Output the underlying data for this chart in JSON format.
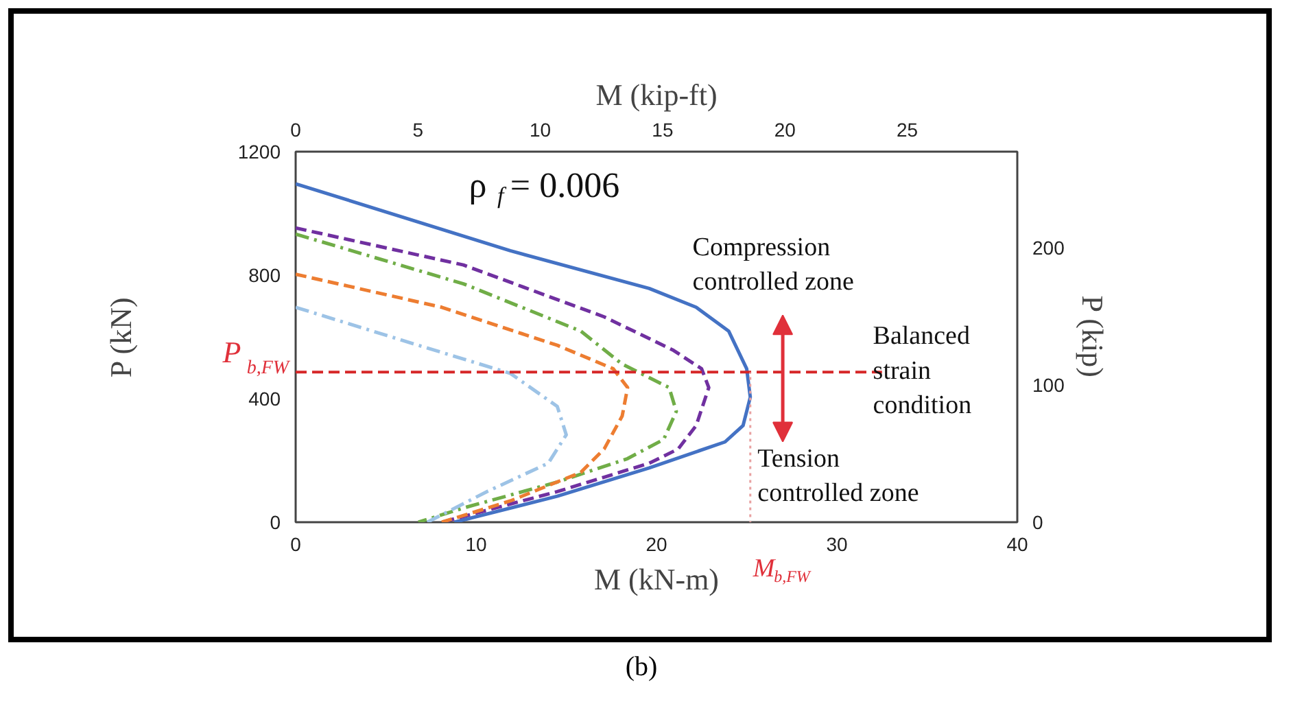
{
  "chart_data": {
    "type": "line",
    "xlabel": "M (kN-m)",
    "ylabel": "P (kN)",
    "x2label": "M (kip-ft)",
    "y2label": "P (kip)",
    "xlim": [
      0,
      40
    ],
    "xticks": [
      0,
      10,
      20,
      30,
      40
    ],
    "x2lim": [
      0,
      29.5
    ],
    "x2ticks": [
      0,
      5,
      10,
      15,
      20,
      25
    ],
    "ylim": [
      0,
      1200
    ],
    "yticks": [
      0,
      400,
      800,
      1200
    ],
    "y2lim": [
      0,
      269.8
    ],
    "y2ticks": [
      0,
      100,
      200
    ],
    "grid": false,
    "marker": "none",
    "series": [
      {
        "color": "#4472c4",
        "line_style": "solid",
        "x": [
          0,
          11.9,
          19.6,
          22.2,
          24.0,
          25.0,
          25.2,
          24.8,
          23.8,
          19.6,
          14.5,
          8.8
        ],
        "values": [
          1096,
          879,
          757,
          696,
          619,
          497,
          405,
          313,
          260,
          176,
          84,
          0
        ]
      },
      {
        "color": "#7030a0",
        "line_style": "dashed",
        "x": [
          0,
          9.3,
          17.1,
          20.9,
          22.5,
          22.9,
          22.2,
          21.2,
          19.6,
          14.5,
          8.1
        ],
        "values": [
          953,
          833,
          665,
          558,
          497,
          436,
          313,
          237,
          191,
          99,
          0
        ]
      },
      {
        "color": "#70ad47",
        "line_style": "dashdot",
        "x": [
          0,
          9.3,
          15.8,
          18.1,
          20.7,
          21.1,
          20.4,
          18.4,
          14.5,
          9.3,
          6.8
        ],
        "values": [
          933,
          772,
          619,
          512,
          436,
          359,
          268,
          206,
          130,
          46,
          0
        ]
      },
      {
        "color": "#ed7d31",
        "line_style": "dashed",
        "x": [
          0,
          8.1,
          14.5,
          17.6,
          18.4,
          18.1,
          17.1,
          15.8,
          11.9,
          8.1
        ],
        "values": [
          803,
          696,
          573,
          497,
          436,
          344,
          237,
          161,
          69,
          0
        ]
      },
      {
        "color": "#9dc3e6",
        "line_style": "dashdot",
        "x": [
          0,
          6.8,
          11.9,
          14.5,
          15.0,
          14.0,
          10.6,
          7.3
        ],
        "values": [
          696,
          573,
          482,
          375,
          283,
          191,
          99,
          0
        ]
      }
    ],
    "ref_lines": [
      {
        "axis": "y",
        "value": 486,
        "label": "P$_{b,FW}$",
        "color": "#d62728",
        "line_style": "dashed"
      },
      {
        "axis": "x",
        "value": 25.2,
        "label": "M$_{b,FW}$",
        "color": "#e8a0a0",
        "line_style": "dotted"
      }
    ],
    "annotations": [
      "ρ$_{f}$ = 0.006",
      "Compression controlled zone",
      "Tension controlled zone",
      "Balanced strain condition",
      "(b)"
    ]
  }
}
